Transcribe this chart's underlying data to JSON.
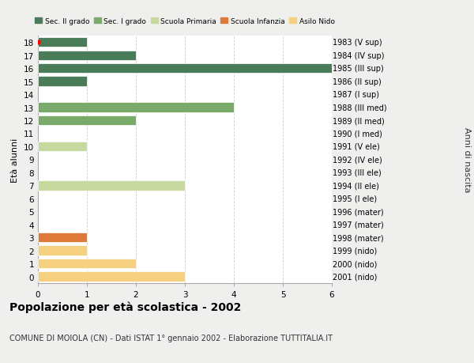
{
  "ages": [
    18,
    17,
    16,
    15,
    14,
    13,
    12,
    11,
    10,
    9,
    8,
    7,
    6,
    5,
    4,
    3,
    2,
    1,
    0
  ],
  "right_labels": [
    "1983 (V sup)",
    "1984 (IV sup)",
    "1985 (III sup)",
    "1986 (II sup)",
    "1987 (I sup)",
    "1988 (III med)",
    "1989 (II med)",
    "1990 (I med)",
    "1991 (V ele)",
    "1992 (IV ele)",
    "1993 (III ele)",
    "1994 (II ele)",
    "1995 (I ele)",
    "1996 (mater)",
    "1997 (mater)",
    "1998 (mater)",
    "1999 (nido)",
    "2000 (nido)",
    "2001 (nido)"
  ],
  "bar_data": [
    {
      "age": 18,
      "value": 1,
      "color": "#4a7c59"
    },
    {
      "age": 17,
      "value": 2,
      "color": "#4a7c59"
    },
    {
      "age": 16,
      "value": 6,
      "color": "#4a7c59"
    },
    {
      "age": 15,
      "value": 1,
      "color": "#4a7c59"
    },
    {
      "age": 14,
      "value": 0,
      "color": "#4a7c59"
    },
    {
      "age": 13,
      "value": 4,
      "color": "#7aaa6a"
    },
    {
      "age": 12,
      "value": 2,
      "color": "#7aaa6a"
    },
    {
      "age": 11,
      "value": 0,
      "color": "#7aaa6a"
    },
    {
      "age": 10,
      "value": 1,
      "color": "#c8d9a0"
    },
    {
      "age": 9,
      "value": 0,
      "color": "#c8d9a0"
    },
    {
      "age": 8,
      "value": 0,
      "color": "#c8d9a0"
    },
    {
      "age": 7,
      "value": 3,
      "color": "#c8d9a0"
    },
    {
      "age": 6,
      "value": 0,
      "color": "#c8d9a0"
    },
    {
      "age": 5,
      "value": 0,
      "color": "#e07a3a"
    },
    {
      "age": 4,
      "value": 0,
      "color": "#e07a3a"
    },
    {
      "age": 3,
      "value": 1,
      "color": "#e07a3a"
    },
    {
      "age": 2,
      "value": 1,
      "color": "#f5d080"
    },
    {
      "age": 1,
      "value": 2,
      "color": "#f5d080"
    },
    {
      "age": 0,
      "value": 3,
      "color": "#f5d080"
    }
  ],
  "xlim": [
    0,
    6
  ],
  "xticks": [
    0,
    1,
    2,
    3,
    4,
    5,
    6
  ],
  "title": "Popolazione per età scolastica - 2002",
  "subtitle": "COMUNE DI MOIOLA (CN) - Dati ISTAT 1° gennaio 2002 - Elaborazione TUTTITALIA.IT",
  "ylabel": "Età alunni",
  "ylabel_right": "Anni di nascita",
  "background_color": "#efefed",
  "plot_bg_color": "#ffffff",
  "grid_color": "#cccccc",
  "legend_labels": [
    "Sec. II grado",
    "Sec. I grado",
    "Scuola Primaria",
    "Scuola Infanzia",
    "Asilo Nido"
  ],
  "legend_colors": [
    "#4a7c59",
    "#7aaa6a",
    "#c8d9a0",
    "#e07a3a",
    "#f5d080"
  ],
  "red_dot_age": 18,
  "bar_height": 0.75
}
